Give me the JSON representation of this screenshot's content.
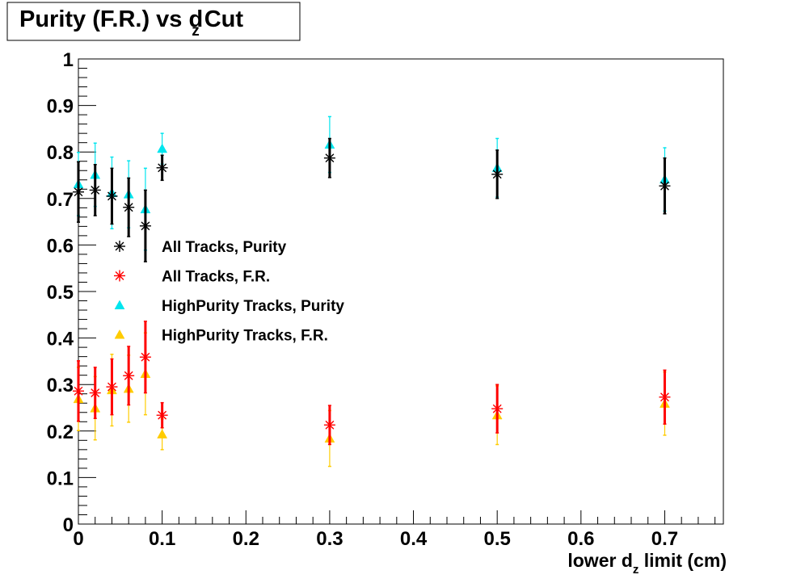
{
  "chart_data": {
    "type": "scatter",
    "title": {
      "text": "Purity (F.R.) vs d",
      "subscript": "z",
      "suffix": "Cut"
    },
    "xlabel": {
      "text": "lower d",
      "subscript": "z",
      "suffix": " limit (cm)"
    },
    "ylabel": "",
    "xlim": [
      0,
      0.77
    ],
    "ylim": [
      0,
      1
    ],
    "x_ticks": [
      "0",
      "0.1",
      "0.2",
      "0.3",
      "0.4",
      "0.5",
      "0.6",
      "0.7"
    ],
    "y_ticks": [
      "0",
      "0.1",
      "0.2",
      "0.3",
      "0.4",
      "0.5",
      "0.6",
      "0.7",
      "0.8",
      "0.9",
      "1"
    ],
    "grid": false,
    "legend_position": "center-left",
    "series": [
      {
        "name": "All Tracks, Purity",
        "marker": "star",
        "color": "#000000",
        "x": [
          0,
          0.02,
          0.04,
          0.06,
          0.08,
          0.1,
          0.3,
          0.5,
          0.7
        ],
        "y": [
          0.714,
          0.718,
          0.705,
          0.681,
          0.641,
          0.766,
          0.787,
          0.752,
          0.727
        ],
        "yerr": [
          0.065,
          0.055,
          0.06,
          0.063,
          0.077,
          0.027,
          0.042,
          0.052,
          0.06
        ]
      },
      {
        "name": "All Tracks, F.R.",
        "marker": "star",
        "color": "#ff0000",
        "x": [
          0,
          0.02,
          0.04,
          0.06,
          0.08,
          0.1,
          0.3,
          0.5,
          0.7
        ],
        "y": [
          0.286,
          0.282,
          0.295,
          0.319,
          0.359,
          0.234,
          0.213,
          0.248,
          0.273
        ],
        "yerr": [
          0.065,
          0.055,
          0.06,
          0.063,
          0.077,
          0.027,
          0.042,
          0.052,
          0.058
        ]
      },
      {
        "name": "HighPurity Tracks, Purity",
        "marker": "triangle",
        "color": "#00e5ee",
        "x": [
          0,
          0.02,
          0.04,
          0.06,
          0.08,
          0.1,
          0.3,
          0.5,
          0.7
        ],
        "y": [
          0.731,
          0.751,
          0.712,
          0.709,
          0.677,
          0.807,
          0.816,
          0.766,
          0.741
        ],
        "yerr": [
          0.068,
          0.068,
          0.077,
          0.072,
          0.088,
          0.033,
          0.06,
          0.063,
          0.068
        ]
      },
      {
        "name": "HighPurity Tracks, F.R.",
        "marker": "triangle",
        "color": "#ffcc00",
        "x": [
          0,
          0.02,
          0.04,
          0.06,
          0.08,
          0.1,
          0.3,
          0.5,
          0.7
        ],
        "y": [
          0.269,
          0.249,
          0.288,
          0.291,
          0.323,
          0.193,
          0.184,
          0.234,
          0.259
        ],
        "yerr": [
          0.068,
          0.068,
          0.077,
          0.072,
          0.088,
          0.033,
          0.06,
          0.063,
          0.068
        ]
      }
    ]
  }
}
